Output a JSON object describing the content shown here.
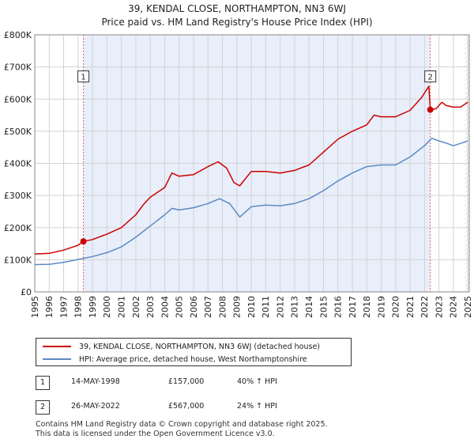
{
  "title_line1": "39, KENDAL CLOSE, NORTHAMPTON, NN3 6WJ",
  "title_line2": "Price paid vs. HM Land Registry's House Price Index (HPI)",
  "colors": {
    "property": "#cc0000",
    "hpi": "#5b8ac4",
    "shade": "#e8eefa",
    "grid": "#d3d3d3",
    "vline": "#e06060"
  },
  "legend": {
    "property_label": "39, KENDAL CLOSE, NORTHAMPTON, NN3 6WJ (detached house)",
    "hpi_label": "HPI: Average price, detached house, West Northamptonshire"
  },
  "transactions": [
    {
      "num": "1",
      "date": "14-MAY-1998",
      "price": "£157,000",
      "hpi_change": "40% ↑ HPI"
    },
    {
      "num": "2",
      "date": "26-MAY-2022",
      "price": "£567,000",
      "hpi_change": "24% ↑ HPI"
    }
  ],
  "footer_line1": "Contains HM Land Registry data © Crown copyright and database right 2025.",
  "footer_line2": "This data is licensed under the Open Government Licence v3.0.",
  "chart_data": {
    "type": "line",
    "title": "39, KENDAL CLOSE, NORTHAMPTON, NN3 6WJ",
    "subtitle": "Price paid vs. HM Land Registry's House Price Index (HPI)",
    "xlabel": "",
    "ylabel": "",
    "xlim": [
      1995,
      2025.1
    ],
    "ylim": [
      0,
      800000
    ],
    "grid": true,
    "legend_position": "below",
    "y_ticks": [
      0,
      100000,
      200000,
      300000,
      400000,
      500000,
      600000,
      700000,
      800000
    ],
    "y_tick_labels": [
      "£0",
      "£100K",
      "£200K",
      "£300K",
      "£400K",
      "£500K",
      "£600K",
      "£700K",
      "£800K"
    ],
    "x_ticks": [
      1995,
      1996,
      1997,
      1998,
      1999,
      2000,
      2001,
      2002,
      2003,
      2004,
      2005,
      2006,
      2007,
      2008,
      2009,
      2010,
      2011,
      2012,
      2013,
      2014,
      2015,
      2016,
      2017,
      2018,
      2019,
      2020,
      2021,
      2022,
      2023,
      2024,
      2025
    ],
    "x_tick_labels": [
      "1995",
      "1996",
      "1997",
      "1998",
      "1999",
      "2000",
      "2001",
      "2002",
      "2003",
      "2004",
      "2005",
      "2006",
      "2007",
      "2008",
      "2009",
      "2010",
      "2011",
      "2012",
      "2013",
      "2014",
      "2015",
      "2016",
      "2017",
      "2018",
      "2019",
      "2020",
      "2021",
      "2022",
      "2023",
      "2024",
      "2025"
    ],
    "shaded_period": [
      1998.37,
      2022.4
    ],
    "sales": [
      {
        "label": "1",
        "x": 1998.37,
        "y": 157000
      },
      {
        "label": "2",
        "x": 2022.4,
        "y": 567000
      }
    ],
    "hatch_after": 2024.8,
    "series": [
      {
        "name": "39, KENDAL CLOSE, NORTHAMPTON, NN3 6WJ (detached house)",
        "x": [
          1995,
          1996,
          1997,
          1998,
          1998.37,
          1999,
          2000,
          2001,
          2002,
          2002.5,
          2003,
          2004,
          2004.5,
          2005,
          2006,
          2007,
          2007.7,
          2008.3,
          2008.8,
          2009.2,
          2010,
          2011,
          2012,
          2013,
          2014,
          2015,
          2016,
          2017,
          2018,
          2018.5,
          2019,
          2020,
          2021,
          2021.8,
          2022.3,
          2022.4,
          2022.8,
          2023.2,
          2023.5,
          2024,
          2024.5,
          2025
        ],
        "values": [
          118000,
          120000,
          130000,
          145000,
          157000,
          163000,
          180000,
          200000,
          240000,
          270000,
          295000,
          325000,
          370000,
          360000,
          365000,
          390000,
          405000,
          385000,
          340000,
          330000,
          375000,
          375000,
          370000,
          378000,
          395000,
          435000,
          475000,
          500000,
          520000,
          550000,
          545000,
          545000,
          565000,
          605000,
          640000,
          567000,
          570000,
          590000,
          580000,
          575000,
          575000,
          590000
        ]
      },
      {
        "name": "HPI: Average price, detached house, West Northamptonshire",
        "x": [
          1995,
          1996,
          1997,
          1998,
          1999,
          2000,
          2001,
          2002,
          2003,
          2004,
          2004.5,
          2005,
          2006,
          2007,
          2007.8,
          2008.5,
          2009.2,
          2010,
          2011,
          2012,
          2013,
          2014,
          2015,
          2016,
          2017,
          2018,
          2019,
          2020,
          2021,
          2022,
          2022.5,
          2023,
          2023.5,
          2024,
          2024.5,
          2025
        ],
        "values": [
          85000,
          86000,
          92000,
          101000,
          110000,
          122000,
          140000,
          170000,
          205000,
          240000,
          260000,
          255000,
          262000,
          275000,
          290000,
          275000,
          233000,
          265000,
          270000,
          268000,
          275000,
          290000,
          315000,
          345000,
          370000,
          390000,
          395000,
          395000,
          420000,
          455000,
          478000,
          470000,
          463000,
          455000,
          462000,
          470000
        ]
      }
    ]
  }
}
